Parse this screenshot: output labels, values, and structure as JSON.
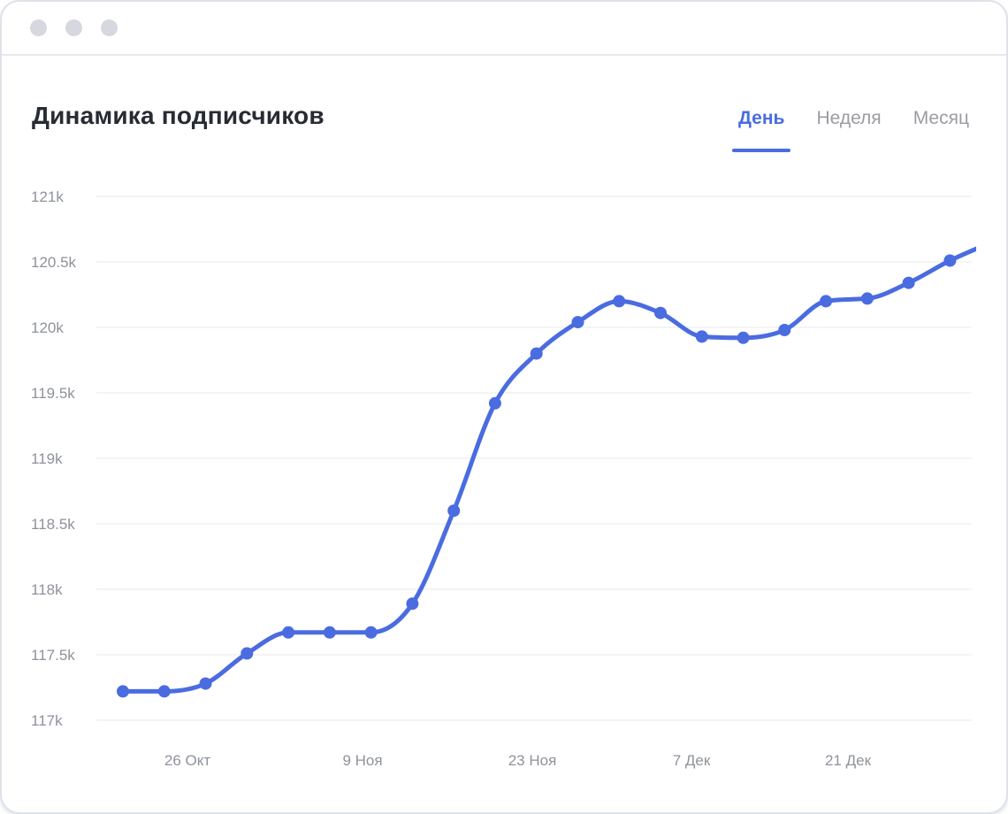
{
  "window": {
    "controls": [
      "dot",
      "dot",
      "dot"
    ]
  },
  "header": {
    "title": "Динамика подписчиков",
    "tabs": [
      {
        "label": "День",
        "active": true
      },
      {
        "label": "Неделя",
        "active": false
      },
      {
        "label": "Месяц",
        "active": false
      }
    ]
  },
  "colors": {
    "accent": "#4a6ce0",
    "line": "#4a6ce0",
    "marker": "#4a6ce0",
    "title_text": "#272b33",
    "inactive_tab_text": "#9b9ca3",
    "axis_text": "#8f929b",
    "gridline": "#e9eaee",
    "window_dot": "#d5d8df",
    "card_border": "#dfe2e8"
  },
  "chart_data": {
    "type": "line",
    "title": "Динамика подписчиков",
    "legend": "none",
    "grid": "horizontal",
    "curve": "monotone",
    "ylabel": "",
    "xlabel": "",
    "ylim_k": [
      117,
      121
    ],
    "series": [
      {
        "name": "Подписчики",
        "unit": "k",
        "values_k": [
          117.22,
          117.22,
          117.28,
          117.51,
          117.67,
          117.67,
          117.67,
          117.89,
          118.6,
          119.42,
          119.8,
          120.04,
          120.2,
          120.11,
          119.93,
          119.92,
          119.98,
          120.2,
          120.22,
          120.34,
          120.51,
          120.65
        ]
      }
    ],
    "last_point_clipped_no_marker": true,
    "y_ticks": [
      {
        "value_k": 121,
        "label": "121k"
      },
      {
        "value_k": 120.5,
        "label": "120.5k"
      },
      {
        "value_k": 120,
        "label": "120k"
      },
      {
        "value_k": 119.5,
        "label": "119.5k"
      },
      {
        "value_k": 119,
        "label": "119k"
      },
      {
        "value_k": 118.5,
        "label": "118.5k"
      },
      {
        "value_k": 118,
        "label": "118k"
      },
      {
        "value_k": 117.5,
        "label": "117.5k"
      },
      {
        "value_k": 117,
        "label": "117k"
      }
    ],
    "x_tick_labels": [
      "26 Окт",
      "9 Ноя",
      "23 Ноя",
      "7 Дек",
      "21 Дек"
    ]
  }
}
